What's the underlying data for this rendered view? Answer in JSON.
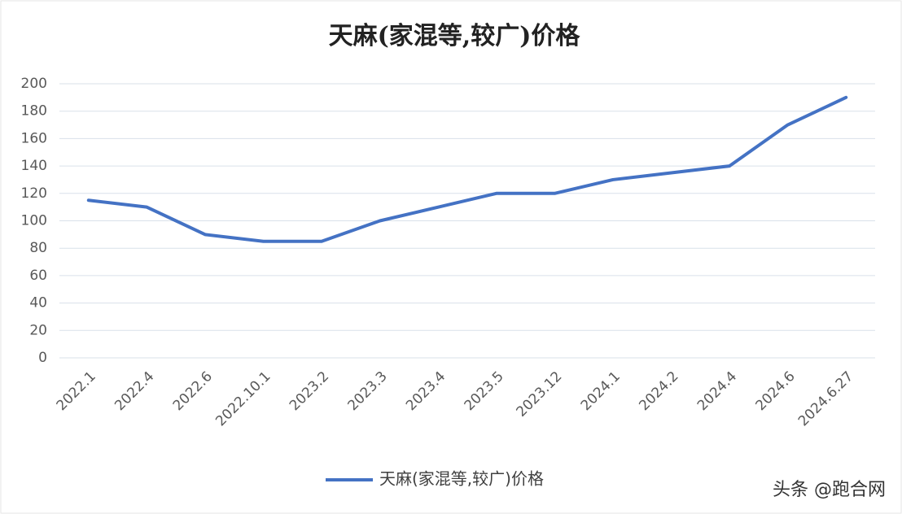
{
  "chart_data": {
    "type": "line",
    "title": "天麻(家混等,较广)价格",
    "categories": [
      "2022.1",
      "2022.4",
      "2022.6",
      "2022.10.1",
      "2023.2",
      "2023.3",
      "2023.4",
      "2023.5",
      "2023.12",
      "2024.1",
      "2024.2",
      "2024.4",
      "2024.6",
      "2024.6.27"
    ],
    "series": [
      {
        "name": "天麻(家混等,较广)价格",
        "color": "#4472c4",
        "values": [
          115,
          110,
          90,
          85,
          85,
          100,
          110,
          120,
          120,
          130,
          135,
          140,
          170,
          190
        ]
      }
    ],
    "ylim": [
      0,
      200
    ],
    "yticks": [
      0,
      20,
      40,
      60,
      80,
      100,
      120,
      140,
      160,
      180,
      200
    ],
    "grid": true,
    "legend": "bottom"
  },
  "watermark": "头条 @跑合网"
}
